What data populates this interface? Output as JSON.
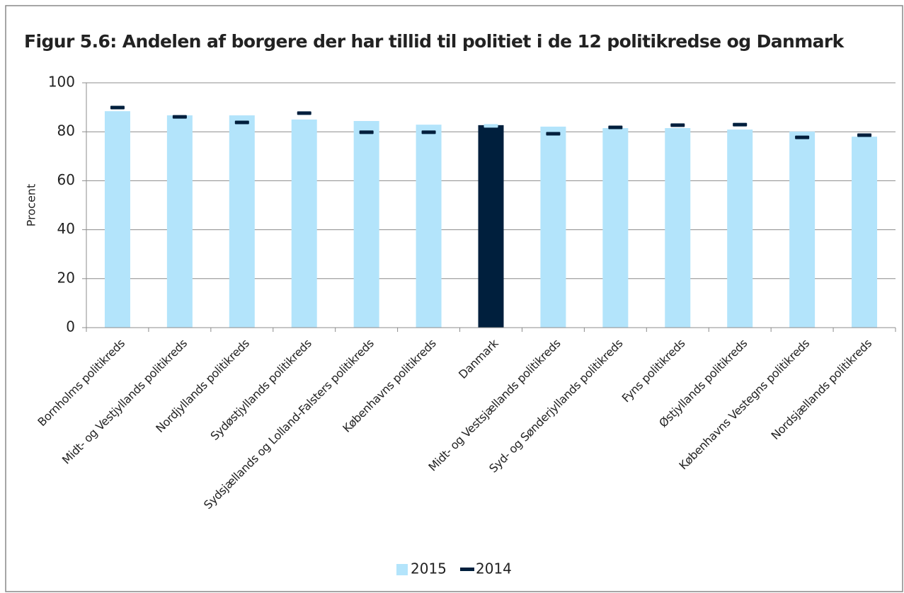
{
  "chart_data": {
    "type": "bar",
    "title": "Figur 5.6: Andelen af borgere der har tillid til politiet i de 12 politikredse og Danmark",
    "y_label": "Procent",
    "categories": [
      "Bornholms politikreds",
      "Midt- og Vestjyllands politikreds",
      "Nordjyllands politikreds",
      "Sydøstjyllands politikreds",
      "Sydsjællands og Lolland-Falsters politikreds",
      "Københavns politikreds",
      "Danmark",
      "Midt- og Vestsjællands politikreds",
      "Syd- og Sønderjyllands politikreds",
      "Fyns politikreds",
      "Østjyllands politikreds",
      "Københavns Vestegns politikreds",
      "Nordsjællands politikreds"
    ],
    "series": [
      {
        "name": "2015",
        "color": "#b3e4fb",
        "mark": "bar",
        "colors": [
          "#b3e4fb",
          "#b3e4fb",
          "#b3e4fb",
          "#b3e4fb",
          "#b3e4fb",
          "#b3e4fb",
          "#001f3d",
          "#b3e4fb",
          "#b3e4fb",
          "#b3e4fb",
          "#b3e4fb",
          "#b3e4fb",
          "#b3e4fb"
        ],
        "values": [
          88.4,
          86.7,
          86.7,
          85.0,
          84.4,
          82.9,
          82.7,
          82.1,
          81.5,
          81.5,
          80.9,
          80.1,
          78.0
        ]
      },
      {
        "name": "2014",
        "color": "#001f3d",
        "mark": "dash",
        "colors": [
          "#001f3d",
          "#001f3d",
          "#001f3d",
          "#001f3d",
          "#001f3d",
          "#001f3d",
          "#b3e4fb",
          "#001f3d",
          "#001f3d",
          "#001f3d",
          "#001f3d",
          "#001f3d",
          "#001f3d"
        ],
        "values": [
          89.9,
          86.1,
          83.8,
          87.6,
          79.8,
          79.8,
          82.4,
          79.2,
          81.8,
          82.7,
          82.9,
          77.7,
          78.6
        ]
      }
    ],
    "ylim": [
      0,
      100
    ],
    "yticks": [
      0,
      20,
      40,
      60,
      80,
      100
    ],
    "grid": true,
    "legend": "bottom"
  }
}
